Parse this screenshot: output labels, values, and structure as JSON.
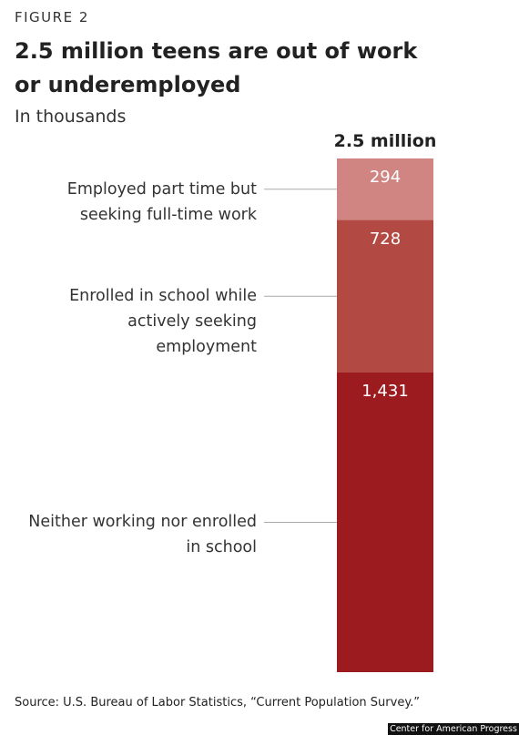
{
  "figure_label": "FIGURE 2",
  "chart_data": {
    "type": "stacked_bar",
    "title": "2.5 million teens are out of work or underemployed",
    "subtitle": "In thousands",
    "total_label": "2.5 million",
    "series": [
      {
        "name": "Employed part time but seeking full-time work",
        "color": "#d08582",
        "values": [
          294
        ],
        "value_labels": [
          "294"
        ]
      },
      {
        "name": "Enrolled in school while actively seeking employment",
        "color": "#b24a43",
        "values": [
          728
        ],
        "value_labels": [
          "728"
        ]
      },
      {
        "name": "Neither working nor enrolled in school",
        "color": "#9b1b1f",
        "values": [
          1431
        ],
        "value_labels": [
          "1,431"
        ]
      }
    ],
    "source": "Source: U.S. Bureau of Labor Statistics, “Current Population Survey.”"
  },
  "credit": "Center for American Progress"
}
